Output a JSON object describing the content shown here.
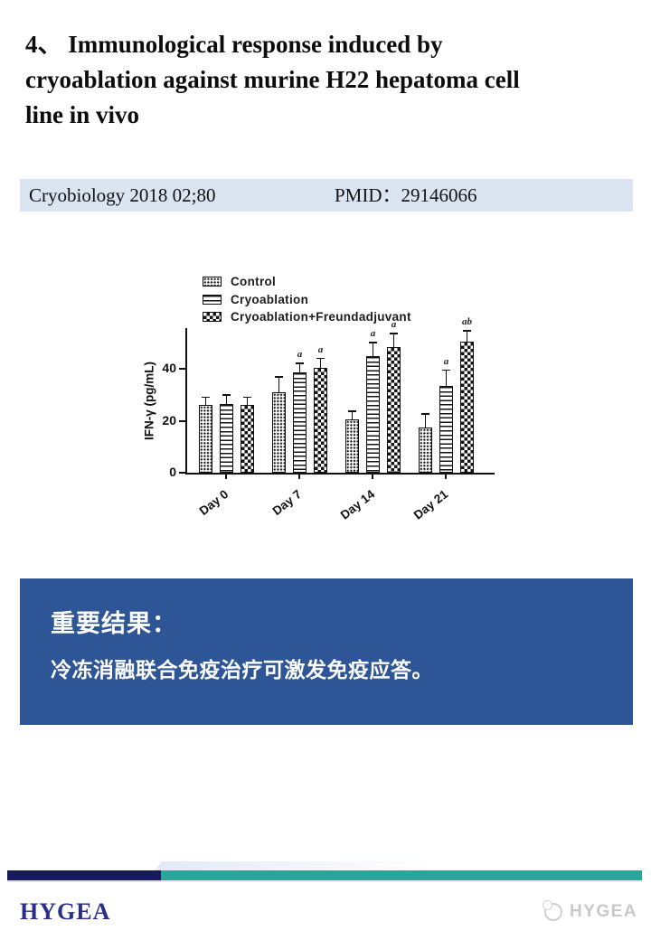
{
  "slide": {
    "title": {
      "lines": [
        "4、 Immunological response induced by",
        "cryoablation against murine H22 hepatoma cell",
        "line in vivo"
      ]
    },
    "citation": {
      "journal": "Cryobiology 2018 02;80",
      "pmid": "PMID：29146066"
    },
    "result_box": {
      "heading": "重要结果：",
      "body": "冷冻消融联合免疫治疗可激发免疫应答。"
    },
    "footer": {
      "brand": "HYGEA",
      "watermark_text": "HYGEA"
    },
    "colors": {
      "citation_bg": "#dbe5f2",
      "result_box_bg": "#2e5697",
      "footer_navy": "#181a5e",
      "footer_teal": "#27a79c",
      "brand_navy": "#272e8c",
      "watermark_gray": "#c9c9c9"
    }
  },
  "chart_data": {
    "type": "bar",
    "title": "",
    "xlabel": "",
    "ylabel": "IFN-γ (pg/mL)",
    "categories": [
      "Day 0",
      "Day 7",
      "Day 14",
      "Day 21"
    ],
    "yticks": [
      0,
      20,
      40
    ],
    "ylim": [
      0,
      55
    ],
    "grid": false,
    "legend_position": "top-left",
    "series": [
      {
        "name": "Control",
        "pattern": "dots",
        "values": [
          26,
          31,
          20.5,
          17.5
        ],
        "errors": [
          3,
          6,
          3,
          5
        ],
        "annotations": [
          "",
          "",
          "",
          ""
        ]
      },
      {
        "name": "Cryoablation",
        "pattern": "hlines",
        "values": [
          26.5,
          38.5,
          45,
          33.5
        ],
        "errors": [
          3.5,
          3.5,
          5,
          6
        ],
        "annotations": [
          "",
          "a",
          "a",
          "a"
        ]
      },
      {
        "name": "Cryoablation+Freundadjuvant",
        "pattern": "checker",
        "values": [
          26,
          40.5,
          48.5,
          50.5
        ],
        "errors": [
          3,
          3.5,
          5,
          4
        ],
        "annotations": [
          "",
          "a",
          "a",
          "ab"
        ]
      }
    ]
  }
}
